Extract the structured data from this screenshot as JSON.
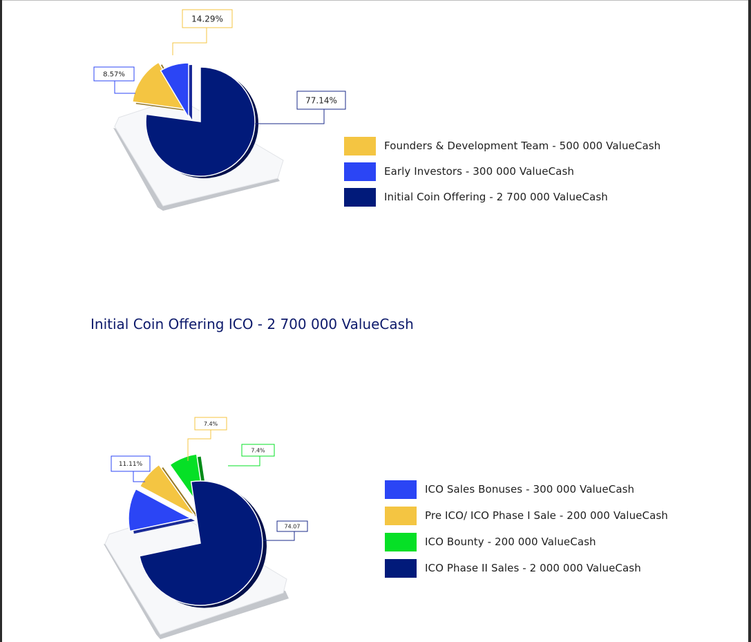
{
  "colors": {
    "yellow": "#f4c542",
    "blue": "#2b45f5",
    "navy": "#011a7a",
    "green": "#06e026",
    "title": "#0d1a6b"
  },
  "section_title": "Initial Coin Offering ICO - 2 700 000 ValueCash",
  "chart_data": [
    {
      "type": "pie",
      "title": "",
      "slices": [
        {
          "name": "Founders & Development Team - 500 000 ValueCash",
          "value": 500000,
          "percent_label": "14.29%",
          "color": "#f4c542"
        },
        {
          "name": "Early Investors - 300 000 ValueCash",
          "value": 300000,
          "percent_label": "8.57%",
          "color": "#2b45f5"
        },
        {
          "name": "Initial Coin Offering - 2 700 000 ValueCash",
          "value": 2700000,
          "percent_label": "77.14%",
          "color": "#011a7a"
        }
      ],
      "legend_order": [
        0,
        1,
        2
      ],
      "legend_position": "right"
    },
    {
      "type": "pie",
      "title": "Initial Coin Offering ICO - 2 700 000 ValueCash",
      "slices": [
        {
          "name": "ICO Sales Bonuses - 300 000 ValueCash",
          "value": 300000,
          "percent_label": "11.11%",
          "color": "#2b45f5"
        },
        {
          "name": "Pre ICO/ ICO Phase I Sale - 200 000 ValueCash",
          "value": 200000,
          "percent_label": "7.4%",
          "color": "#f4c542"
        },
        {
          "name": "ICO Bounty - 200 000 ValueCash",
          "value": 200000,
          "percent_label": "7.4%",
          "color": "#06e026"
        },
        {
          "name": "ICO Phase II Sales - 2 000 000 ValueCash",
          "value": 2000000,
          "percent_label": "74.07",
          "color": "#011a7a"
        }
      ],
      "legend_order": [
        0,
        1,
        2,
        3
      ],
      "legend_position": "right"
    }
  ]
}
